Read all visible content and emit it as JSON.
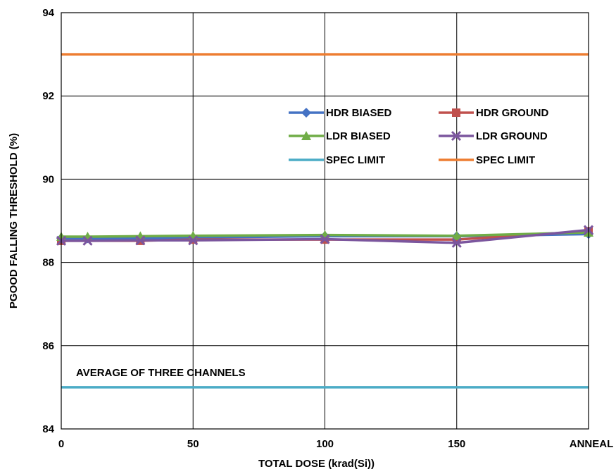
{
  "chart_data": {
    "type": "line",
    "title": "",
    "xlabel": "TOTAL DOSE (krad(Si))",
    "ylabel": "PGOOD FALLING THRESHOLD (%)",
    "ylim": [
      84,
      94
    ],
    "xlim": [
      0,
      200
    ],
    "grid": true,
    "legend_position": "upper-right inside plot",
    "x_ticks": [
      {
        "value": 0,
        "label": "0"
      },
      {
        "value": 50,
        "label": "50"
      },
      {
        "value": 100,
        "label": "100"
      },
      {
        "value": 150,
        "label": "150"
      },
      {
        "value": 200,
        "label": "ANNEAL"
      }
    ],
    "y_ticks": [
      {
        "value": 84,
        "label": "84"
      },
      {
        "value": 86,
        "label": "86"
      },
      {
        "value": 88,
        "label": "88"
      },
      {
        "value": 90,
        "label": "90"
      },
      {
        "value": 92,
        "label": "92"
      },
      {
        "value": 94,
        "label": "94"
      }
    ],
    "annotation": "AVERAGE OF THREE CHANNELS",
    "series": [
      {
        "name": "HDR BIASED",
        "color": "#4472C4",
        "marker": "diamond",
        "x": [
          0,
          10,
          30,
          50,
          100,
          150,
          200
        ],
        "y": [
          88.58,
          88.58,
          88.58,
          88.6,
          88.63,
          88.63,
          88.68
        ]
      },
      {
        "name": "HDR GROUND",
        "color": "#C0504D",
        "marker": "square",
        "x": [
          0,
          30,
          50,
          100,
          150,
          200
        ],
        "y": [
          88.52,
          88.52,
          88.55,
          88.55,
          88.55,
          88.75
        ]
      },
      {
        "name": "LDR BIASED",
        "color": "#70AD47",
        "marker": "triangle",
        "x": [
          0,
          10,
          30,
          50,
          100,
          150,
          200
        ],
        "y": [
          88.62,
          88.62,
          88.63,
          88.64,
          88.66,
          88.64,
          88.72
        ]
      },
      {
        "name": "LDR GROUND",
        "color": "#7B569E",
        "marker": "x",
        "x": [
          0,
          10,
          30,
          50,
          100,
          150,
          200
        ],
        "y": [
          88.52,
          88.52,
          88.53,
          88.53,
          88.56,
          88.47,
          88.78
        ]
      },
      {
        "name": "SPEC LIMIT",
        "color": "#4BACC6",
        "marker": "none",
        "x": [
          0,
          200
        ],
        "y": [
          85,
          85
        ]
      },
      {
        "name": "SPEC LIMIT",
        "color": "#ED7D31",
        "marker": "none",
        "x": [
          0,
          200
        ],
        "y": [
          93,
          93
        ]
      }
    ]
  }
}
